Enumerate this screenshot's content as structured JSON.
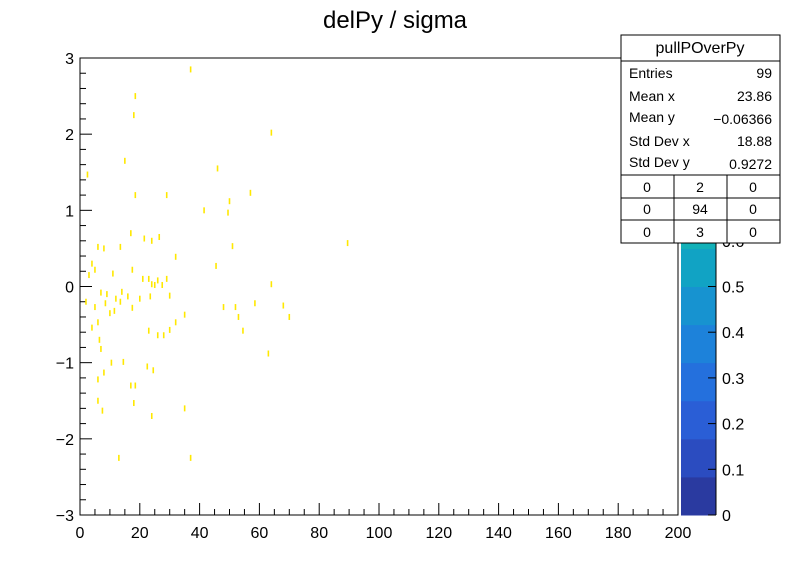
{
  "colors": {
    "marker": "#ffe800",
    "axis": "#000000",
    "background": "#ffffff"
  },
  "chart_data": {
    "type": "scatter",
    "title": "delPy / sigma",
    "xlabel": "",
    "ylabel": "",
    "xlim": [
      0,
      200
    ],
    "ylim": [
      -3,
      3
    ],
    "x_ticks": [
      0,
      20,
      40,
      60,
      80,
      100,
      120,
      140,
      160,
      180,
      200
    ],
    "y_ticks": [
      -3,
      -2,
      -1,
      0,
      1,
      2,
      3
    ],
    "grid": false,
    "points": [
      [
        37,
        2.85
      ],
      [
        18.5,
        2.5
      ],
      [
        18,
        2.25
      ],
      [
        64,
        2.02
      ],
      [
        15,
        1.65
      ],
      [
        46,
        1.55
      ],
      [
        2.5,
        1.47
      ],
      [
        57,
        1.23
      ],
      [
        18.5,
        1.2
      ],
      [
        29,
        1.2
      ],
      [
        50,
        1.12
      ],
      [
        41.5,
        1.0
      ],
      [
        49.5,
        0.97
      ],
      [
        17,
        0.7
      ],
      [
        21.5,
        0.63
      ],
      [
        24,
        0.6
      ],
      [
        26.5,
        0.65
      ],
      [
        89.5,
        0.57
      ],
      [
        51,
        0.53
      ],
      [
        13.5,
        0.52
      ],
      [
        6,
        0.52
      ],
      [
        8,
        0.5
      ],
      [
        32,
        0.39
      ],
      [
        4,
        0.3
      ],
      [
        5,
        0.22
      ],
      [
        45.5,
        0.27
      ],
      [
        17.5,
        0.22
      ],
      [
        11,
        0.17
      ],
      [
        3,
        0.15
      ],
      [
        21,
        0.1
      ],
      [
        23,
        0.1
      ],
      [
        26,
        0.08
      ],
      [
        29,
        0.1
      ],
      [
        24,
        0.03
      ],
      [
        25,
        0.02
      ],
      [
        27.5,
        0.02
      ],
      [
        64,
        0.03
      ],
      [
        7,
        -0.08
      ],
      [
        9,
        -0.1
      ],
      [
        14,
        -0.07
      ],
      [
        16,
        -0.13
      ],
      [
        20,
        -0.16
      ],
      [
        23.5,
        -0.13
      ],
      [
        30,
        -0.12
      ],
      [
        2,
        -0.2
      ],
      [
        8.5,
        -0.22
      ],
      [
        12,
        -0.16
      ],
      [
        13.5,
        -0.2
      ],
      [
        5,
        -0.27
      ],
      [
        48,
        -0.27
      ],
      [
        52,
        -0.27
      ],
      [
        58.5,
        -0.22
      ],
      [
        68,
        -0.25
      ],
      [
        11.5,
        -0.32
      ],
      [
        17.5,
        -0.28
      ],
      [
        10,
        -0.35
      ],
      [
        53,
        -0.4
      ],
      [
        70,
        -0.4
      ],
      [
        35,
        -0.37
      ],
      [
        6,
        -0.47
      ],
      [
        4,
        -0.54
      ],
      [
        32,
        -0.47
      ],
      [
        23,
        -0.58
      ],
      [
        26,
        -0.64
      ],
      [
        28,
        -0.64
      ],
      [
        30,
        -0.57
      ],
      [
        54.5,
        -0.58
      ],
      [
        6.5,
        -0.7
      ],
      [
        7,
        -0.82
      ],
      [
        63,
        -0.88
      ],
      [
        10.5,
        -1.0
      ],
      [
        14.5,
        -0.99
      ],
      [
        22.5,
        -1.05
      ],
      [
        24.5,
        -1.1
      ],
      [
        8,
        -1.13
      ],
      [
        6,
        -1.22
      ],
      [
        17,
        -1.3
      ],
      [
        18.5,
        -1.3
      ],
      [
        6,
        -1.5
      ],
      [
        18,
        -1.53
      ],
      [
        35,
        -1.6
      ],
      [
        7.5,
        -1.63
      ],
      [
        24,
        -1.7
      ],
      [
        13,
        -2.25
      ],
      [
        37,
        -2.25
      ]
    ],
    "colorbar": {
      "range": [
        0,
        1
      ],
      "tick_labels": [
        "0",
        "0.1",
        "0.2",
        "0.3",
        "0.4",
        "0.5",
        "0.6"
      ]
    }
  },
  "stats_box": {
    "title": "pullPOverPy",
    "rows": [
      {
        "label": "Entries",
        "value": "99"
      },
      {
        "label": "Mean x",
        "value": "23.86"
      },
      {
        "label": "Mean y",
        "value": "−0.06366"
      },
      {
        "label": "Std Dev x",
        "value": "18.88"
      },
      {
        "label": "Std Dev y",
        "value": "0.9272"
      }
    ],
    "grid": [
      [
        "0",
        "2",
        "0"
      ],
      [
        "0",
        "94",
        "0"
      ],
      [
        "0",
        "3",
        "0"
      ]
    ]
  }
}
